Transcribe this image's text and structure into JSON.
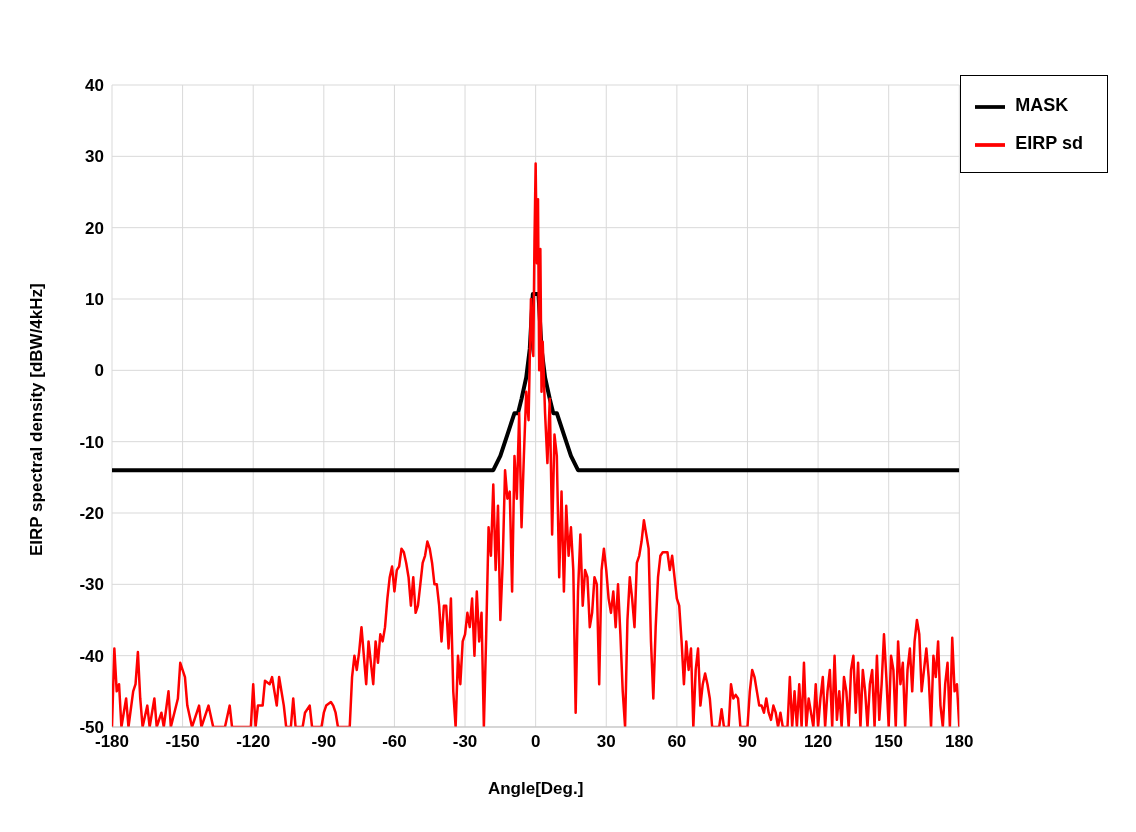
{
  "chart_data": {
    "type": "line",
    "xlabel": "Angle[Deg.]",
    "ylabel": "EIRP spectral density [dBW/4kHz]",
    "xlim": [
      -180,
      180
    ],
    "xticks": [
      -180,
      -150,
      -120,
      -90,
      -60,
      -30,
      0,
      30,
      60,
      90,
      120,
      150,
      180
    ],
    "ylim": [
      -50,
      40
    ],
    "yticks": [
      -50,
      -40,
      -30,
      -20,
      -10,
      0,
      10,
      20,
      30,
      40
    ],
    "grid": true,
    "legend": "top right",
    "series": [
      {
        "name": "MASK",
        "color": "#000000",
        "x": [
          -180,
          -18,
          -15,
          -12,
          -9,
          -7.5,
          -6,
          -4,
          -2.5,
          -1.2,
          1.2,
          2.5,
          4,
          6,
          7.5,
          9,
          12,
          15,
          18,
          180
        ],
        "values": [
          -14,
          -14,
          -12,
          -9,
          -6,
          -6,
          -4,
          -1,
          3,
          10.7,
          10.7,
          3,
          -1,
          -4,
          -6,
          -6,
          -9,
          -12,
          -14,
          -14
        ]
      },
      {
        "name": "EIRP sd",
        "color": "#ff0000",
        "x": [
          -180,
          -179,
          -178,
          -177,
          -176,
          -174,
          -173,
          -171,
          -170,
          -169,
          -168,
          -167,
          -165,
          -164,
          -162,
          -161,
          -159,
          -158,
          -156,
          -155,
          -152,
          -151,
          -149,
          -148,
          -146,
          -143,
          -142,
          -139,
          -137,
          -132,
          -130,
          -129,
          -121,
          -120,
          -119,
          -118,
          -116,
          -115,
          -113,
          -112,
          -110,
          -109,
          -107,
          -106,
          -104,
          -103,
          -102,
          -99,
          -98,
          -96,
          -95,
          -91,
          -90,
          -89,
          -87,
          -86,
          -85,
          -84,
          -79,
          -78,
          -77,
          -76,
          -75,
          -74,
          -73,
          -72,
          -71,
          -70,
          -69,
          -68,
          -67,
          -66,
          -65,
          -64,
          -63,
          -62,
          -61,
          -60,
          -59,
          -58,
          -57,
          -56,
          -55,
          -54,
          -53,
          -52,
          -51,
          -50,
          -49,
          -48,
          -47,
          -46,
          -45,
          -44,
          -43,
          -42,
          -41,
          -40,
          -39,
          -38,
          -37,
          -36,
          -35,
          -34,
          -33,
          -32,
          -31,
          -30,
          -29,
          -28,
          -27,
          -26,
          -25,
          -24,
          -23,
          -22,
          -21,
          -20,
          -19,
          -18,
          -17,
          -16,
          -15,
          -14,
          -13,
          -12,
          -11,
          -10,
          -9,
          -8,
          -7,
          -6,
          -5,
          -4,
          -3,
          -2,
          -1,
          -0.5,
          0,
          0.5,
          1,
          1.5,
          2,
          2.5,
          3,
          4,
          5,
          6,
          7,
          8,
          9,
          10,
          11,
          12,
          13,
          14,
          15,
          16,
          17,
          18,
          19,
          20,
          21,
          22,
          23,
          24,
          25,
          26,
          27,
          28,
          29,
          30,
          31,
          32,
          33,
          34,
          35,
          36,
          37,
          38,
          39,
          40,
          41,
          42,
          43,
          44,
          45,
          46,
          47,
          48,
          49,
          50,
          51,
          52,
          53,
          54,
          56,
          57,
          58,
          59,
          60,
          61,
          62,
          63,
          64,
          65,
          66,
          67,
          68,
          69,
          70,
          71,
          72,
          73,
          74,
          75,
          78,
          79,
          80,
          82,
          83,
          84,
          85,
          86,
          87,
          90,
          91,
          92,
          93,
          94,
          95,
          96,
          97,
          98,
          99,
          100,
          101,
          102,
          103,
          104,
          105,
          107,
          108,
          109,
          110,
          111,
          112,
          113,
          114,
          115,
          116,
          118,
          119,
          120,
          121,
          122,
          123,
          124,
          125,
          126,
          127,
          128,
          129,
          130,
          131,
          132,
          133,
          134,
          135,
          136,
          137,
          138,
          139,
          140,
          141,
          142,
          143,
          144,
          145,
          146,
          147,
          148,
          149,
          150,
          151,
          152,
          153,
          154,
          155,
          156,
          157,
          158,
          159,
          160,
          161,
          162,
          163,
          164,
          165,
          166,
          167,
          168,
          169,
          170,
          171,
          172,
          173,
          174,
          175,
          176,
          177,
          178,
          179,
          180
        ],
        "values": [
          -50,
          -39,
          -45,
          -44,
          -50,
          -46,
          -50,
          -45,
          -44,
          -39.5,
          -46,
          -50,
          -47,
          -50,
          -46,
          -50,
          -48,
          -50,
          -45,
          -50,
          -46,
          -41,
          -43,
          -47,
          -50,
          -47,
          -50,
          -47,
          -50,
          -50,
          -47,
          -50,
          -50,
          -44,
          -50,
          -47,
          -47,
          -43.5,
          -44,
          -43,
          -47,
          -43,
          -47,
          -50,
          -50,
          -46,
          -50,
          -50,
          -48,
          -47,
          -50,
          -50,
          -48,
          -47,
          -46.5,
          -47,
          -48,
          -50,
          -50,
          -43,
          -40,
          -42,
          -39.5,
          -36,
          -40,
          -44,
          -38,
          -41,
          -44,
          -38,
          -41,
          -37,
          -38,
          -36,
          -32,
          -29,
          -27.5,
          -31,
          -28,
          -27.5,
          -25,
          -25.5,
          -27,
          -29,
          -33,
          -29,
          -34,
          -33,
          -30,
          -27,
          -26,
          -24,
          -25,
          -27,
          -30,
          -30,
          -33,
          -38,
          -33,
          -33,
          -39,
          -32,
          -45,
          -50,
          -40,
          -44,
          -38,
          -37,
          -34,
          -36,
          -32,
          -40,
          -31,
          -38,
          -34,
          -50,
          -37,
          -22,
          -26,
          -16,
          -28,
          -19,
          -35,
          -27,
          -14,
          -18,
          -17,
          -31,
          -12,
          -18,
          -6,
          -22,
          -12,
          -3,
          -7,
          10,
          2,
          18,
          29,
          15,
          24,
          0,
          17,
          -3,
          4,
          -6,
          -13,
          -4,
          -23,
          -9,
          -12,
          -29,
          -17,
          -31,
          -19,
          -26,
          -22,
          -28,
          -48,
          -31,
          -23,
          -33,
          -28,
          -29,
          -36,
          -34,
          -29,
          -30,
          -44,
          -28,
          -25,
          -28,
          -32,
          -34,
          -31,
          -36,
          -30,
          -37,
          -45,
          -50,
          -35,
          -29,
          -32,
          -36,
          -27,
          -26,
          -24,
          -21,
          -23,
          -25,
          -38,
          -46,
          -36,
          -29,
          -26,
          -25.5,
          -25.5,
          -28,
          -26,
          -29,
          -32,
          -33,
          -38,
          -44,
          -38,
          -42,
          -39,
          -50,
          -42,
          -39,
          -47,
          -44,
          -42.5,
          -44,
          -46,
          -50,
          -50,
          -47.5,
          -50,
          -50,
          -44,
          -46,
          -45.5,
          -46,
          -50,
          -50,
          -45,
          -42,
          -43,
          -45,
          -47,
          -47,
          -48,
          -46,
          -48,
          -49,
          -47,
          -48,
          -50,
          -48,
          -50,
          -50,
          -43,
          -50,
          -45,
          -50,
          -44,
          -50,
          -41,
          -50,
          -46,
          -50,
          -44,
          -50,
          -46,
          -43,
          -50,
          -45,
          -42,
          -50,
          -40,
          -49,
          -45,
          -50,
          -43,
          -45,
          -50,
          -42,
          -40,
          -48,
          -41,
          -50,
          -42,
          -45,
          -50,
          -44,
          -42,
          -50,
          -40,
          -49,
          -44,
          -37,
          -43,
          -50,
          -40,
          -42,
          -50,
          -38,
          -44,
          -41,
          -50,
          -42,
          -39,
          -45,
          -38,
          -35,
          -37,
          -45,
          -42,
          -39,
          -43,
          -50,
          -40,
          -43,
          -38,
          -47,
          -50,
          -44,
          -41,
          -50,
          -37.5,
          -45,
          -44,
          -50
        ]
      }
    ]
  }
}
